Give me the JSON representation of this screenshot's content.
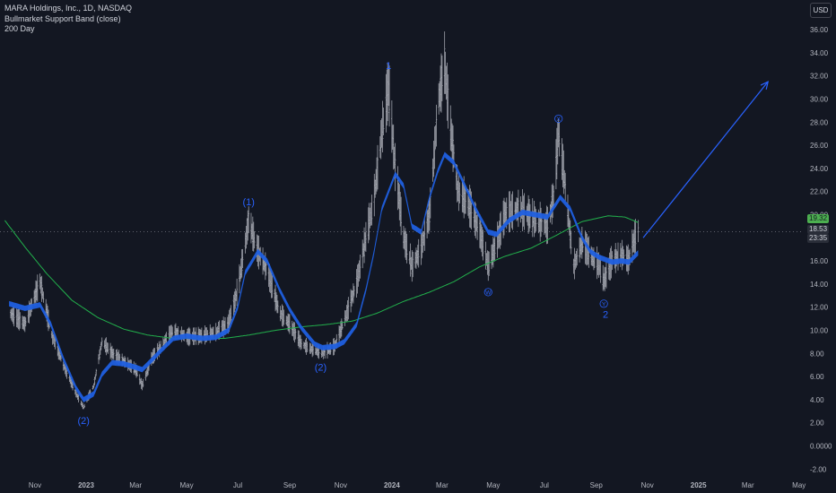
{
  "header": {
    "title": "MARA Holdings, Inc., 1D, NASDAQ",
    "indicator_1": "Bullmarket Support Band (close)",
    "indicator_2": "200 Day",
    "currency_button": "USD"
  },
  "price_tags": {
    "ma200": "19.32",
    "last": "18.53",
    "countdown": "23:35"
  },
  "colors": {
    "background": "#131722",
    "candles": "#b2b5be",
    "band": "#1f5fe0",
    "ma200": "#22b14c",
    "annotation": "#2962ff",
    "axis_text": "#b2b5be"
  },
  "chart_data": {
    "type": "line",
    "xlabel": "",
    "ylabel": "",
    "x_ticks": [
      "Nov",
      "2023",
      "Mar",
      "May",
      "Jul",
      "Sep",
      "Nov",
      "2024",
      "Mar",
      "May",
      "Jul",
      "Sep",
      "Nov",
      "2025",
      "Mar",
      "May"
    ],
    "bold_x_ticks": [
      "2023",
      "2024",
      "2025"
    ],
    "y_ticks": [
      "36.00",
      "34.00",
      "32.00",
      "30.00",
      "28.00",
      "26.00",
      "24.00",
      "22.00",
      "20.00",
      "18.00",
      "16.00",
      "14.00",
      "12.00",
      "10.00",
      "8.00",
      "6.00",
      "4.00",
      "2.00",
      "0.0000",
      "-2.00"
    ],
    "ylim": [
      -2,
      36
    ],
    "grid": false,
    "series": [
      {
        "name": "MARA Holdings, Inc., 1D, NASDAQ",
        "style": "daily-bars",
        "points": [
          [
            "2022-10-01",
            11.5
          ],
          [
            "2022-10-20",
            10.5
          ],
          [
            "2022-11-07",
            14.2
          ],
          [
            "2022-11-20",
            9.8
          ],
          [
            "2022-12-05",
            7.0
          ],
          [
            "2022-12-20",
            4.5
          ],
          [
            "2022-12-29",
            3.3
          ],
          [
            "2023-01-10",
            5.2
          ],
          [
            "2023-01-20",
            9.0
          ],
          [
            "2023-02-01",
            8.0
          ],
          [
            "2023-02-15",
            7.3
          ],
          [
            "2023-03-01",
            6.6
          ],
          [
            "2023-03-09",
            5.2
          ],
          [
            "2023-03-20",
            7.5
          ],
          [
            "2023-04-01",
            8.6
          ],
          [
            "2023-04-15",
            10.0
          ],
          [
            "2023-05-01",
            9.4
          ],
          [
            "2023-05-20",
            9.5
          ],
          [
            "2023-06-05",
            9.8
          ],
          [
            "2023-06-20",
            10.5
          ],
          [
            "2023-07-01",
            13.5
          ],
          [
            "2023-07-10",
            17.5
          ],
          [
            "2023-07-14",
            19.5
          ],
          [
            "2023-07-25",
            16.8
          ],
          [
            "2023-08-05",
            15.2
          ],
          [
            "2023-08-20",
            11.5
          ],
          [
            "2023-09-01",
            10.5
          ],
          [
            "2023-09-15",
            8.8
          ],
          [
            "2023-10-01",
            8.2
          ],
          [
            "2023-10-10",
            8.0
          ],
          [
            "2023-10-25",
            8.6
          ],
          [
            "2023-11-05",
            10.8
          ],
          [
            "2023-11-20",
            14.0
          ],
          [
            "2023-12-01",
            18.0
          ],
          [
            "2023-12-10",
            21.0
          ],
          [
            "2023-12-20",
            27.0
          ],
          [
            "2023-12-28",
            31.0
          ],
          [
            "2024-01-05",
            24.0
          ],
          [
            "2024-01-15",
            18.0
          ],
          [
            "2024-01-25",
            15.5
          ],
          [
            "2024-02-05",
            17.0
          ],
          [
            "2024-02-15",
            20.0
          ],
          [
            "2024-02-25",
            29.5
          ],
          [
            "2024-03-04",
            33.0
          ],
          [
            "2024-03-10",
            28.0
          ],
          [
            "2024-03-20",
            22.0
          ],
          [
            "2024-04-01",
            21.0
          ],
          [
            "2024-04-15",
            18.5
          ],
          [
            "2024-04-25",
            15.5
          ],
          [
            "2024-05-05",
            17.5
          ],
          [
            "2024-05-15",
            20.0
          ],
          [
            "2024-06-01",
            20.5
          ],
          [
            "2024-06-20",
            19.5
          ],
          [
            "2024-07-05",
            19.0
          ],
          [
            "2024-07-12",
            21.5
          ],
          [
            "2024-07-18",
            27.0
          ],
          [
            "2024-07-25",
            23.0
          ],
          [
            "2024-08-05",
            15.5
          ],
          [
            "2024-08-15",
            17.5
          ],
          [
            "2024-08-25",
            16.5
          ],
          [
            "2024-09-05",
            15.5
          ],
          [
            "2024-09-10",
            14.2
          ],
          [
            "2024-09-20",
            16.0
          ],
          [
            "2024-10-01",
            16.5
          ],
          [
            "2024-10-10",
            16.0
          ],
          [
            "2024-10-15",
            17.5
          ],
          [
            "2024-10-21",
            18.53
          ]
        ]
      },
      {
        "name": "Bullmarket Support Band (close)",
        "style": "band",
        "points": [
          [
            "2022-10-01",
            12.3
          ],
          [
            "2022-10-20",
            11.9
          ],
          [
            "2022-11-07",
            12.2
          ],
          [
            "2022-11-20",
            10.5
          ],
          [
            "2022-12-05",
            7.5
          ],
          [
            "2022-12-20",
            5.0
          ],
          [
            "2022-12-29",
            4.0
          ],
          [
            "2023-01-10",
            4.5
          ],
          [
            "2023-01-20",
            6.2
          ],
          [
            "2023-02-01",
            7.2
          ],
          [
            "2023-02-15",
            7.1
          ],
          [
            "2023-03-01",
            6.8
          ],
          [
            "2023-03-09",
            6.6
          ],
          [
            "2023-03-20",
            7.4
          ],
          [
            "2023-04-01",
            8.3
          ],
          [
            "2023-04-15",
            9.3
          ],
          [
            "2023-05-01",
            9.5
          ],
          [
            "2023-05-20",
            9.3
          ],
          [
            "2023-06-05",
            9.4
          ],
          [
            "2023-06-20",
            10.0
          ],
          [
            "2023-07-01",
            12.0
          ],
          [
            "2023-07-10",
            15.0
          ],
          [
            "2023-07-25",
            16.8
          ],
          [
            "2023-08-05",
            16.0
          ],
          [
            "2023-08-20",
            13.5
          ],
          [
            "2023-09-01",
            11.8
          ],
          [
            "2023-09-15",
            10.2
          ],
          [
            "2023-10-01",
            8.8
          ],
          [
            "2023-10-10",
            8.5
          ],
          [
            "2023-10-25",
            8.6
          ],
          [
            "2023-11-05",
            9.0
          ],
          [
            "2023-11-20",
            10.5
          ],
          [
            "2023-12-01",
            13.5
          ],
          [
            "2023-12-10",
            16.5
          ],
          [
            "2023-12-20",
            20.5
          ],
          [
            "2024-01-05",
            23.5
          ],
          [
            "2024-01-15",
            22.5
          ],
          [
            "2024-01-25",
            19.0
          ],
          [
            "2024-02-05",
            18.5
          ],
          [
            "2024-02-15",
            21.5
          ],
          [
            "2024-02-25",
            23.8
          ],
          [
            "2024-03-04",
            25.2
          ],
          [
            "2024-03-15",
            24.5
          ],
          [
            "2024-03-25",
            23.0
          ],
          [
            "2024-04-10",
            20.5
          ],
          [
            "2024-04-25",
            18.5
          ],
          [
            "2024-05-05",
            18.3
          ],
          [
            "2024-05-20",
            19.5
          ],
          [
            "2024-06-05",
            20.2
          ],
          [
            "2024-06-20",
            20.0
          ],
          [
            "2024-07-05",
            19.8
          ],
          [
            "2024-07-20",
            21.5
          ],
          [
            "2024-08-01",
            20.5
          ],
          [
            "2024-08-15",
            18.0
          ],
          [
            "2024-08-25",
            16.8
          ],
          [
            "2024-09-05",
            16.3
          ],
          [
            "2024-09-20",
            15.9
          ],
          [
            "2024-10-01",
            16.0
          ],
          [
            "2024-10-10",
            15.9
          ],
          [
            "2024-10-21",
            16.7
          ]
        ]
      },
      {
        "name": "200 Day",
        "style": "line",
        "points": [
          [
            "2022-09-26",
            19.5
          ],
          [
            "2022-10-20",
            17.2
          ],
          [
            "2022-11-15",
            14.9
          ],
          [
            "2022-12-15",
            12.6
          ],
          [
            "2023-01-15",
            11.1
          ],
          [
            "2023-02-15",
            10.1
          ],
          [
            "2023-03-15",
            9.6
          ],
          [
            "2023-04-15",
            9.3
          ],
          [
            "2023-05-15",
            9.3
          ],
          [
            "2023-06-15",
            9.3
          ],
          [
            "2023-07-15",
            9.6
          ],
          [
            "2023-08-15",
            10.0
          ],
          [
            "2023-09-15",
            10.3
          ],
          [
            "2023-10-15",
            10.5
          ],
          [
            "2023-11-15",
            10.8
          ],
          [
            "2023-12-15",
            11.5
          ],
          [
            "2024-01-15",
            12.5
          ],
          [
            "2024-02-15",
            13.3
          ],
          [
            "2024-03-15",
            14.2
          ],
          [
            "2024-04-15",
            15.5
          ],
          [
            "2024-05-15",
            16.4
          ],
          [
            "2024-06-15",
            17.1
          ],
          [
            "2024-07-15",
            18.2
          ],
          [
            "2024-08-15",
            19.4
          ],
          [
            "2024-09-15",
            19.9
          ],
          [
            "2024-10-05",
            19.8
          ],
          [
            "2024-10-21",
            19.32
          ]
        ]
      }
    ],
    "annotations": [
      {
        "label": "(2)",
        "date": "2022-12-29",
        "value": 1.9
      },
      {
        "label": "(1)",
        "date": "2023-07-14",
        "value": 20.8
      },
      {
        "label": "(2)",
        "date": "2023-10-08",
        "value": 6.5
      },
      {
        "label": "1",
        "date": "2023-12-28",
        "value": 32.6
      },
      {
        "label": "2",
        "date": "2024-09-12",
        "value": 11.1
      }
    ],
    "wave_markers": [
      {
        "label": "W",
        "date": "2024-04-25",
        "value": 13.3
      },
      {
        "label": "X",
        "date": "2024-07-18",
        "value": 28.3
      },
      {
        "label": "Y",
        "date": "2024-09-10",
        "value": 12.3
      }
    ],
    "arrow": {
      "from": [
        "2024-10-27",
        18.0
      ],
      "to": [
        "2025-03-25",
        31.5
      ]
    }
  }
}
